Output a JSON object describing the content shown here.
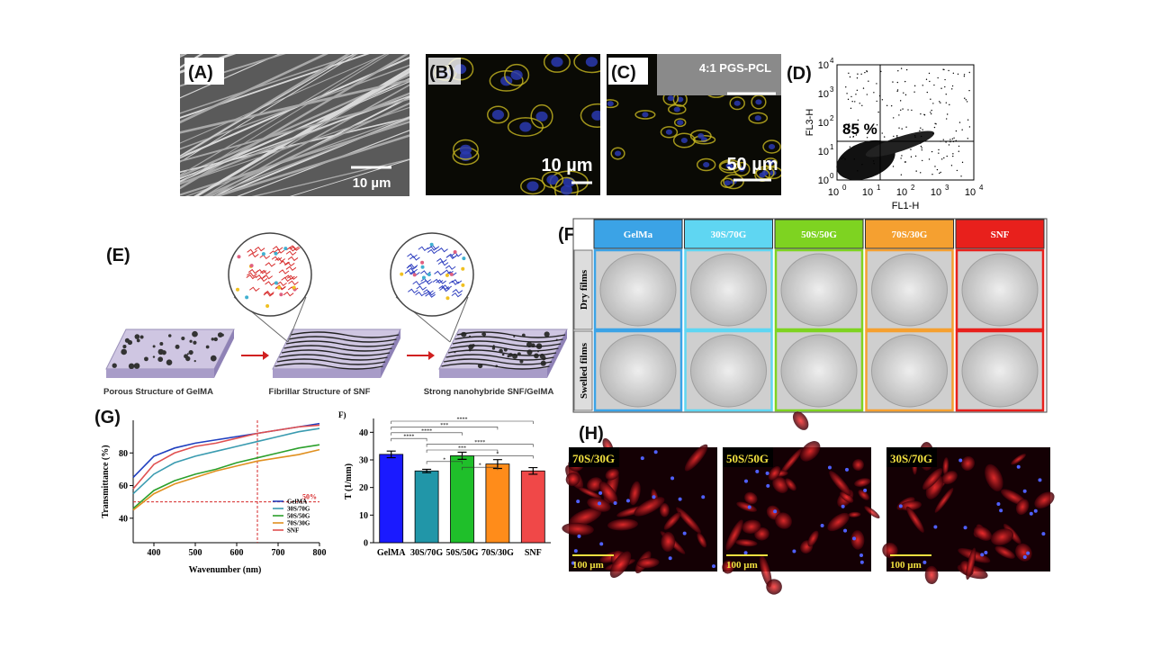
{
  "panel_a": {
    "label": "(A)",
    "scale": "10 µm"
  },
  "panel_b": {
    "label": "(B)",
    "scale": "10 µm"
  },
  "panel_c": {
    "label": "(C)",
    "inset": "4:1 PGS-PCL",
    "scale": "50 µm"
  },
  "panel_d": {
    "label": "(D)",
    "gate": "85 %",
    "x_label": "FL1-H",
    "y_label": "FL3-H",
    "tick_base": "10",
    "exponents": [
      "0",
      "1",
      "2",
      "3",
      "4"
    ]
  },
  "panel_e": {
    "label": "(E)",
    "captions": [
      "Porous Structure of GelMA",
      "Fibrillar Structure of SNF",
      "Strong nanohybride SNF/GelMA"
    ]
  },
  "panel_f": {
    "label": "(F)",
    "columns": [
      {
        "name": "GelMa",
        "color": "#3ba3e6"
      },
      {
        "name": "30S/70G",
        "color": "#5fd6f2"
      },
      {
        "name": "50S/50G",
        "color": "#7ed321"
      },
      {
        "name": "70S/30G",
        "color": "#f5a030"
      },
      {
        "name": "SNF",
        "color": "#e8201c"
      }
    ],
    "rows": [
      "Dry films",
      "Swelled films"
    ]
  },
  "panel_h": {
    "label": "(H)",
    "scale": "100 µm",
    "images": [
      "70S/30G",
      "50S/50G",
      "30S/70G"
    ]
  },
  "chart_data": [
    {
      "type": "line",
      "panel_label": "(G)",
      "x_label": "Wavenumber (nm)",
      "y_label": "Transmittance (%)",
      "x": [
        350,
        400,
        450,
        500,
        550,
        600,
        650,
        700,
        750,
        800
      ],
      "series": [
        {
          "name": "GelMA",
          "color": "#1f3fbf",
          "values": [
            65,
            78,
            83,
            86,
            88,
            90,
            92,
            94,
            96,
            98
          ]
        },
        {
          "name": "30S/70G",
          "color": "#3a9bb0",
          "values": [
            55,
            67,
            74,
            78,
            81,
            84,
            87,
            90,
            93,
            95
          ]
        },
        {
          "name": "50S/50G",
          "color": "#2ca02c",
          "values": [
            46,
            57,
            63,
            67,
            70,
            74,
            77,
            80,
            83,
            85
          ]
        },
        {
          "name": "70S/30G",
          "color": "#e09020",
          "values": [
            45,
            55,
            61,
            65,
            69,
            72,
            75,
            77,
            79,
            82
          ]
        },
        {
          "name": "SNF",
          "color": "#e05050",
          "values": [
            58,
            73,
            80,
            84,
            86,
            89,
            92,
            94,
            96,
            97
          ]
        }
      ],
      "xlim": [
        350,
        800
      ],
      "ylim": [
        25,
        100
      ],
      "xticks": [
        400,
        500,
        600,
        700,
        800
      ],
      "yticks": [
        40,
        60,
        80
      ],
      "reference_x": 650,
      "reference_y": 50,
      "reference_label": "50%",
      "reference_color": "#d62728",
      "legend": "lower right"
    },
    {
      "type": "bar",
      "panel_label": "F)",
      "y_label": "T (1/mm)",
      "categories": [
        "GelMA",
        "30S/70G",
        "50S/50G",
        "70S/30G",
        "SNF"
      ],
      "values": [
        32,
        26,
        31.5,
        28.5,
        26
      ],
      "errors": [
        1.2,
        0.6,
        1.3,
        1.6,
        1.2
      ],
      "colors": [
        "#1a1aff",
        "#2196a8",
        "#1fbf2a",
        "#ff8c1a",
        "#f04848"
      ],
      "ylim": [
        0,
        45
      ],
      "yticks": [
        0,
        10,
        20,
        30,
        40
      ],
      "significance": [
        "****",
        "***",
        "****",
        "****",
        "****",
        "***",
        "*",
        "*",
        "*"
      ]
    }
  ]
}
